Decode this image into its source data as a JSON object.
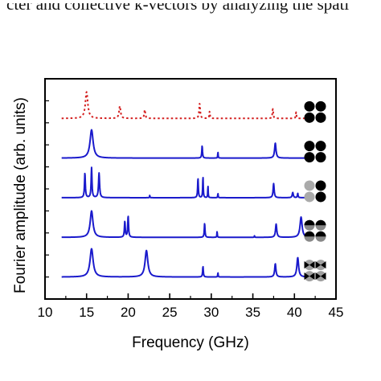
{
  "caption": {
    "line": "cter and collective k-vectors by analyzing the spati"
  },
  "chart_data": {
    "type": "line",
    "xlabel": "Frequency (GHz)",
    "ylabel": "Fourier amplitude (arb. units)",
    "xlim": [
      10,
      45
    ],
    "xticks": [
      10,
      15,
      20,
      25,
      30,
      35,
      40,
      45
    ],
    "y_ticks_labeled": false,
    "series": [
      {
        "style": "dotted",
        "color": "#d42020",
        "baseline": 0.0,
        "peaks": [
          [
            15.0,
            0.3,
            0.35
          ],
          [
            19.0,
            0.14,
            0.22
          ],
          [
            22.0,
            0.1,
            0.15
          ],
          [
            28.6,
            0.17,
            0.15
          ],
          [
            29.8,
            0.08,
            0.1
          ],
          [
            37.4,
            0.11,
            0.12
          ],
          [
            40.2,
            0.07,
            0.1
          ]
        ],
        "icon": "four-black-discs"
      },
      {
        "style": "solid",
        "color": "#1a1acc",
        "baseline": -0.45,
        "peaks": [
          [
            15.6,
            0.32,
            0.45
          ],
          [
            28.9,
            0.14,
            0.1
          ],
          [
            30.8,
            0.07,
            0.06
          ],
          [
            37.7,
            0.17,
            0.2
          ]
        ],
        "icon": "four-black-discs"
      },
      {
        "style": "solid",
        "color": "#1a1acc",
        "baseline": -0.9,
        "peaks": [
          [
            14.8,
            0.28,
            0.12
          ],
          [
            15.6,
            0.34,
            0.12
          ],
          [
            16.5,
            0.28,
            0.15
          ],
          [
            22.6,
            0.03,
            0.05
          ],
          [
            28.4,
            0.22,
            0.1
          ],
          [
            29.0,
            0.24,
            0.08
          ],
          [
            29.6,
            0.14,
            0.06
          ],
          [
            30.8,
            0.05,
            0.06
          ],
          [
            37.5,
            0.16,
            0.15
          ],
          [
            39.8,
            0.06,
            0.15
          ],
          [
            40.4,
            0.05,
            0.1
          ]
        ],
        "icon": "black-gray-discs"
      },
      {
        "style": "solid",
        "color": "#1a1acc",
        "baseline": -1.35,
        "peaks": [
          [
            15.6,
            0.3,
            0.4
          ],
          [
            19.6,
            0.18,
            0.12
          ],
          [
            20.0,
            0.24,
            0.12
          ],
          [
            29.2,
            0.16,
            0.1
          ],
          [
            30.7,
            0.07,
            0.06
          ],
          [
            35.2,
            0.02,
            0.05
          ],
          [
            37.8,
            0.15,
            0.18
          ],
          [
            40.8,
            0.23,
            0.3
          ]
        ],
        "icon": "half-black-discs"
      },
      {
        "style": "solid",
        "color": "#1a1acc",
        "baseline": -1.8,
        "peaks": [
          [
            15.6,
            0.32,
            0.45
          ],
          [
            22.2,
            0.3,
            0.4
          ],
          [
            29.0,
            0.12,
            0.1
          ],
          [
            30.8,
            0.05,
            0.06
          ],
          [
            37.7,
            0.15,
            0.18
          ],
          [
            40.4,
            0.22,
            0.25
          ]
        ],
        "icon": "bowtie-discs"
      }
    ]
  }
}
